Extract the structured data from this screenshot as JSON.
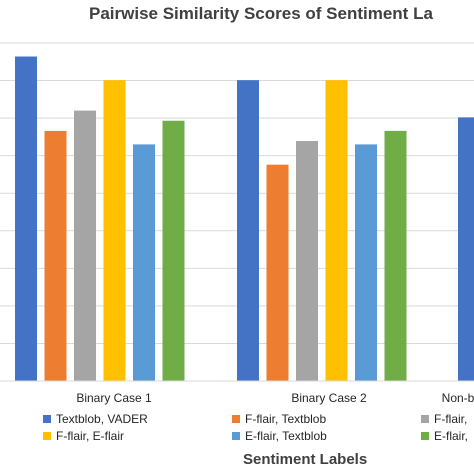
{
  "chart_data": {
    "type": "bar",
    "title": "Pairwise Similarity Scores of Sentiment La",
    "xlabel": "Sentiment Labels",
    "ylabel": "",
    "categories": [
      "Binary Case 1",
      "Binary Case 2",
      "Non-b"
    ],
    "ylim": [
      0,
      1
    ],
    "grid": true,
    "legend_position": "bottom",
    "series": [
      {
        "name": "Textblob, VADER",
        "color": "#4472C4",
        "values": [
          0.96,
          0.89,
          0.78
        ]
      },
      {
        "name": "F-flair, Textblob",
        "color": "#ED7D31",
        "values": [
          0.74,
          0.64,
          null
        ]
      },
      {
        "name": "F-flair,",
        "color": "#A5A5A5",
        "values": [
          0.8,
          0.71,
          null
        ]
      },
      {
        "name": "F-flair, E-flair",
        "color": "#FFC000",
        "values": [
          0.89,
          0.89,
          null
        ]
      },
      {
        "name": "E-flair, Textblob",
        "color": "#5B9BD5",
        "values": [
          0.7,
          0.7,
          null
        ]
      },
      {
        "name": "E-flair,",
        "color": "#70AD47",
        "values": [
          0.77,
          0.74,
          null
        ]
      }
    ]
  }
}
